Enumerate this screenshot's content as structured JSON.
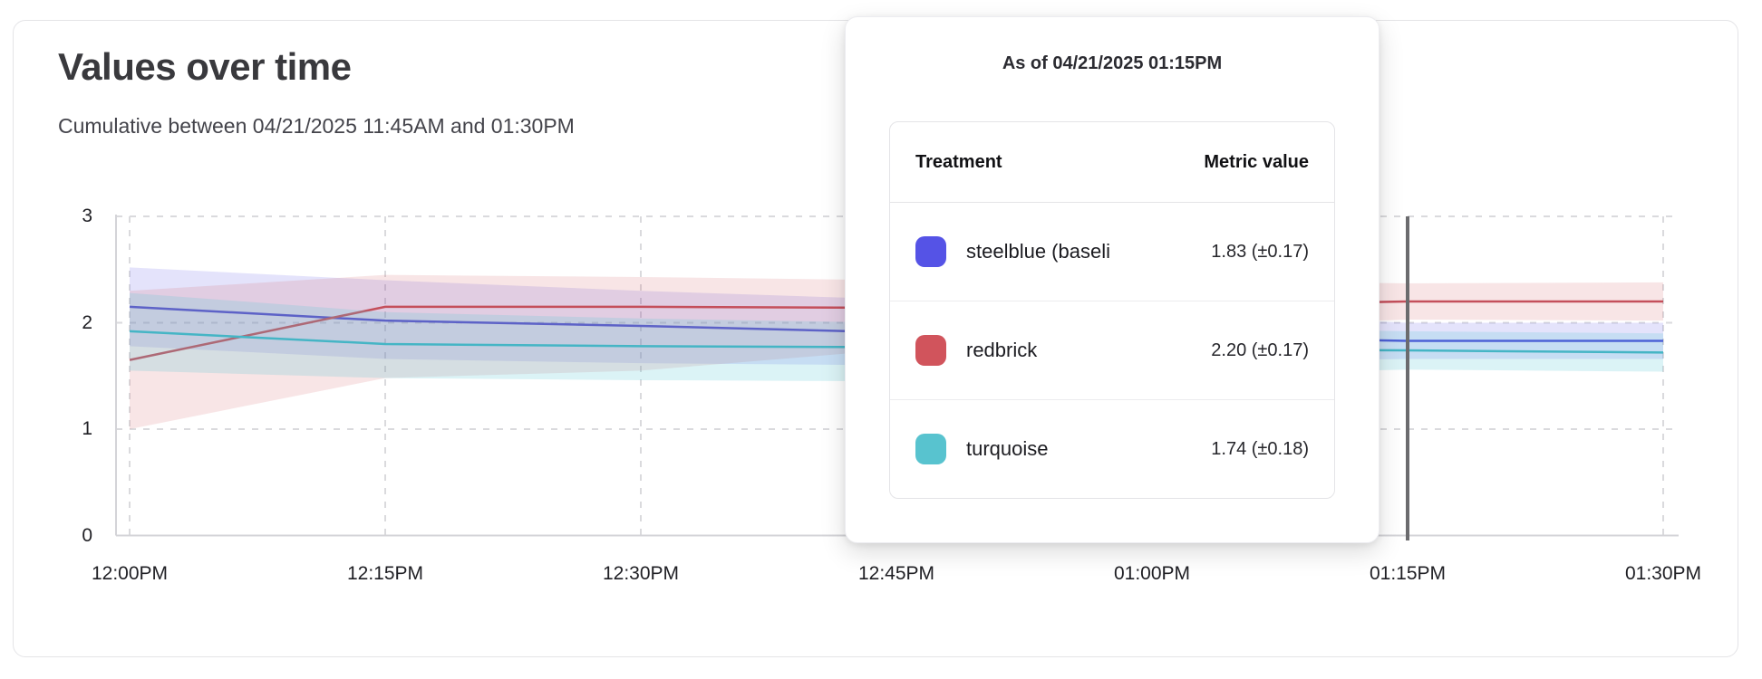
{
  "panel": {
    "title": "Values over time",
    "subtitle": "Cumulative between 04/21/2025 11:45AM and 01:30PM"
  },
  "tooltip": {
    "title": "As of 04/21/2025 01:15PM",
    "columns": {
      "treatment": "Treatment",
      "metric": "Metric value"
    },
    "rows": [
      {
        "label": "steelblue  (baseli",
        "value": "1.83 (±0.17)",
        "color": "#5553e6"
      },
      {
        "label": "redbrick",
        "value": "2.20 (±0.17)",
        "color": "#d1545c"
      },
      {
        "label": "turquoise",
        "value": "1.74 (±0.18)",
        "color": "#58c3cf"
      }
    ]
  },
  "chart_data": {
    "type": "line",
    "title": "Values over time",
    "xlabel": "",
    "ylabel": "",
    "x": [
      "12:00PM",
      "12:15PM",
      "12:30PM",
      "12:45PM",
      "01:00PM",
      "01:15PM",
      "01:30PM"
    ],
    "ylim": [
      0,
      3
    ],
    "yticks": [
      0,
      1,
      2,
      3
    ],
    "grid": true,
    "hover_x": "01:15PM",
    "hover_line_color": "#6b6b6e",
    "series": [
      {
        "name": "steelblue-baseline",
        "color": "#4a45d6",
        "band_color": "rgba(86,82,230,0.16)",
        "values": [
          2.15,
          2.02,
          1.97,
          1.91,
          1.87,
          1.83,
          1.83
        ],
        "upper": [
          2.52,
          2.4,
          2.3,
          2.22,
          2.1,
          2.0,
          2.0
        ],
        "lower": [
          1.78,
          1.66,
          1.62,
          1.6,
          1.63,
          1.66,
          1.66
        ]
      },
      {
        "name": "redbrick",
        "color": "#c44f5b",
        "band_color": "rgba(205,80,90,0.15)",
        "values": [
          1.65,
          2.15,
          2.15,
          2.14,
          2.16,
          2.2,
          2.2
        ],
        "upper": [
          2.3,
          2.45,
          2.43,
          2.4,
          2.4,
          2.37,
          2.38
        ],
        "lower": [
          1.0,
          1.48,
          1.55,
          1.75,
          1.95,
          2.03,
          2.02
        ]
      },
      {
        "name": "turquoise",
        "color": "#45b5c5",
        "band_color": "rgba(90,200,215,0.22)",
        "values": [
          1.92,
          1.8,
          1.78,
          1.77,
          1.75,
          1.74,
          1.72
        ],
        "upper": [
          2.28,
          2.1,
          2.04,
          2.0,
          1.95,
          1.92,
          1.9
        ],
        "lower": [
          1.55,
          1.48,
          1.46,
          1.45,
          1.5,
          1.56,
          1.54
        ]
      }
    ]
  }
}
